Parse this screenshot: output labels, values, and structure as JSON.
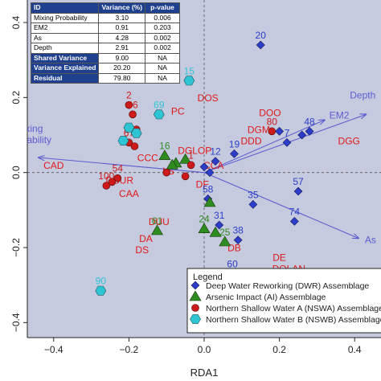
{
  "stats_table": {
    "headers": [
      "ID",
      "Variance (%)",
      "p-value"
    ],
    "rows": [
      {
        "id": "Mixing Probability",
        "variance": "3.10",
        "p": "0.006"
      },
      {
        "id": "EM2",
        "variance": "0.91",
        "p": "0.203"
      },
      {
        "id": "As",
        "variance": "4.28",
        "p": "0.002"
      },
      {
        "id": "Depth",
        "variance": "2.91",
        "p": "0.002"
      }
    ],
    "summary_rows": [
      {
        "id": "Shared Variance",
        "variance": "9.00",
        "p": "NA"
      },
      {
        "id": "Variance Explained",
        "variance": "20.20",
        "p": "NA"
      },
      {
        "id": "Residual",
        "variance": "79.80",
        "p": "NA"
      }
    ]
  },
  "colors": {
    "panel_bg": "#c6cadf",
    "dwr": "#2c3dc8",
    "ai": "#2e8b20",
    "nswa": "#cc1a1a",
    "nswb": "#2ec4d4",
    "arrow": "#5c5ccf",
    "site_label": "#e01818",
    "table_header": "#1f3f8f"
  },
  "chart_data": {
    "type": "scatter",
    "xlabel": "RDA1",
    "ylabel": "",
    "xlim": [
      -0.47,
      0.47
    ],
    "ylim": [
      -0.44,
      0.46
    ],
    "xticks": [
      -0.4,
      -0.2,
      0.0,
      0.2,
      0.4
    ],
    "xtick_labels": [
      "−0.4",
      "−0.2",
      "0.0",
      "0.2",
      "0.4"
    ],
    "yticks": [
      -0.4,
      -0.2,
      0.0,
      0.2,
      0.4
    ],
    "ytick_labels": [
      "−0.4",
      "−0.2",
      "0.0",
      "0.2",
      "0.4"
    ],
    "grid": false,
    "zero_lines": true,
    "legend": {
      "title": "Legend",
      "position": "bottom-right",
      "items": [
        {
          "label": "Deep Water Reworking (DWR) Assemblage",
          "marker": "diamond",
          "color": "#2c3dc8"
        },
        {
          "label": "Arsenic Impact (AI) Assemblage",
          "marker": "triangle",
          "color": "#2e8b20"
        },
        {
          "label": "Northern Shallow Water A (NSWA) Assemblage",
          "marker": "circle",
          "color": "#cc1a1a"
        },
        {
          "label": "Northern Shallow Water B (NSWB) Assemblage",
          "marker": "hexagon",
          "color": "#2ec4d4"
        }
      ]
    },
    "series": [
      {
        "name": "Deep Water Reworking (DWR) Assemblage",
        "marker": "diamond",
        "points": [
          {
            "label": "20",
            "x": 0.15,
            "y": 0.34
          },
          {
            "label": "",
            "x": 0.2,
            "y": 0.11
          },
          {
            "label": "7",
            "x": 0.22,
            "y": 0.08
          },
          {
            "label": "",
            "x": 0.26,
            "y": 0.1
          },
          {
            "label": "48",
            "x": 0.28,
            "y": 0.11
          },
          {
            "label": "19",
            "x": 0.08,
            "y": 0.05
          },
          {
            "label": "12",
            "x": 0.03,
            "y": 0.03
          },
          {
            "label": "",
            "x": 0.0,
            "y": 0.015
          },
          {
            "label": "",
            "x": 0.015,
            "y": 0.0
          },
          {
            "label": "58",
            "x": 0.01,
            "y": -0.07
          },
          {
            "label": "35",
            "x": 0.13,
            "y": -0.085
          },
          {
            "label": "57",
            "x": 0.25,
            "y": -0.05
          },
          {
            "label": "74",
            "x": 0.24,
            "y": -0.13
          },
          {
            "label": "31",
            "x": 0.04,
            "y": -0.14
          },
          {
            "label": "38",
            "x": 0.09,
            "y": -0.18
          },
          {
            "label": "60",
            "x": 0.075,
            "y": -0.27
          }
        ]
      },
      {
        "name": "Arsenic Impact (AI) Assemblage",
        "marker": "triangle",
        "points": [
          {
            "label": "16",
            "x": -0.105,
            "y": 0.045
          },
          {
            "label": "",
            "x": -0.05,
            "y": 0.035
          },
          {
            "label": "",
            "x": -0.075,
            "y": 0.025
          },
          {
            "label": "",
            "x": -0.085,
            "y": 0.02
          },
          {
            "label": "",
            "x": 0.015,
            "y": -0.08
          },
          {
            "label": "24",
            "x": 0.0,
            "y": -0.15
          },
          {
            "label": "",
            "x": 0.03,
            "y": -0.16
          },
          {
            "label": "25",
            "x": 0.055,
            "y": -0.185
          },
          {
            "label": "61",
            "x": -0.125,
            "y": -0.155
          }
        ]
      },
      {
        "name": "Northern Shallow Water A (NSWA) Assemblage",
        "marker": "circle",
        "points": [
          {
            "label": "2",
            "x": -0.2,
            "y": 0.18
          },
          {
            "label": "66",
            "x": -0.19,
            "y": 0.155
          },
          {
            "label": "",
            "x": -0.18,
            "y": 0.115
          },
          {
            "label": "67",
            "x": -0.2,
            "y": 0.08
          },
          {
            "label": "",
            "x": -0.185,
            "y": 0.07
          },
          {
            "label": "1",
            "x": -0.035,
            "y": 0.02
          },
          {
            "label": "",
            "x": -0.1,
            "y": 0.0
          },
          {
            "label": "",
            "x": -0.05,
            "y": -0.01
          },
          {
            "label": "54",
            "x": -0.23,
            "y": -0.015
          },
          {
            "label": "",
            "x": -0.245,
            "y": -0.025
          },
          {
            "label": "100",
            "x": -0.26,
            "y": -0.035
          },
          {
            "label": "80",
            "x": 0.18,
            "y": 0.11
          }
        ]
      },
      {
        "name": "Northern Shallow Water B (NSWB) Assemblage",
        "marker": "hexagon",
        "points": [
          {
            "label": "15",
            "x": -0.04,
            "y": 0.245
          },
          {
            "label": "69",
            "x": -0.12,
            "y": 0.155
          },
          {
            "label": "",
            "x": -0.2,
            "y": 0.12
          },
          {
            "label": "",
            "x": -0.18,
            "y": 0.105
          },
          {
            "label": "",
            "x": -0.215,
            "y": 0.085
          },
          {
            "label": "90",
            "x": -0.275,
            "y": -0.315
          }
        ]
      }
    ],
    "vectors": [
      {
        "name": "Mixing Probability",
        "x": -0.44,
        "y": 0.04
      },
      {
        "name": "EM2",
        "x": 0.32,
        "y": 0.14
      },
      {
        "name": "Depth",
        "x": 0.43,
        "y": 0.155
      },
      {
        "name": "As",
        "x": 0.41,
        "y": -0.175
      }
    ],
    "site_labels": [
      {
        "text": "DOS",
        "x": 0.01,
        "y": 0.19
      },
      {
        "text": "PC",
        "x": -0.07,
        "y": 0.155
      },
      {
        "text": "DOO",
        "x": 0.175,
        "y": 0.15
      },
      {
        "text": "DGM",
        "x": 0.145,
        "y": 0.105
      },
      {
        "text": "DDD",
        "x": 0.125,
        "y": 0.075
      },
      {
        "text": "DGG",
        "x": 0.385,
        "y": 0.075
      },
      {
        "text": "DGLOP",
        "x": -0.025,
        "y": 0.05
      },
      {
        "text": "CCC",
        "x": -0.15,
        "y": 0.03
      },
      {
        "text": "CCA",
        "x": 0.025,
        "y": 0.01
      },
      {
        "text": "CAD",
        "x": -0.4,
        "y": 0.01
      },
      {
        "text": "LS",
        "x": -0.095,
        "y": -0.005
      },
      {
        "text": "DCUR",
        "x": -0.225,
        "y": -0.03
      },
      {
        "text": "CAA",
        "x": -0.2,
        "y": -0.065
      },
      {
        "text": "DF",
        "x": -0.005,
        "y": -0.04
      },
      {
        "text": "DUU",
        "x": -0.12,
        "y": -0.14
      },
      {
        "text": "DA",
        "x": -0.155,
        "y": -0.185
      },
      {
        "text": "DS",
        "x": -0.165,
        "y": -0.215
      },
      {
        "text": "DB",
        "x": 0.08,
        "y": -0.21
      },
      {
        "text": "DE",
        "x": 0.2,
        "y": -0.235
      },
      {
        "text": "DOLAN",
        "x": 0.225,
        "y": -0.265
      }
    ]
  }
}
